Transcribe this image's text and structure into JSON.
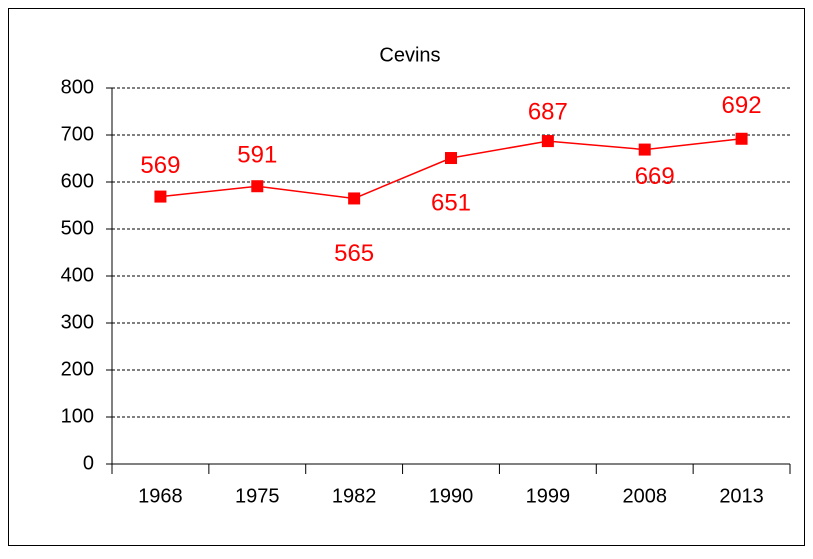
{
  "chart_data": {
    "type": "line",
    "title": "Cevins",
    "categories": [
      "1968",
      "1975",
      "1982",
      "1990",
      "1999",
      "2008",
      "2013"
    ],
    "series": [
      {
        "name": "Cevins",
        "color": "#ff0000",
        "values": [
          569,
          591,
          565,
          651,
          687,
          669,
          692
        ]
      }
    ],
    "ylim": [
      0,
      800
    ],
    "yticks": [
      0,
      100,
      200,
      300,
      400,
      500,
      600,
      700,
      800
    ],
    "grid": true
  }
}
